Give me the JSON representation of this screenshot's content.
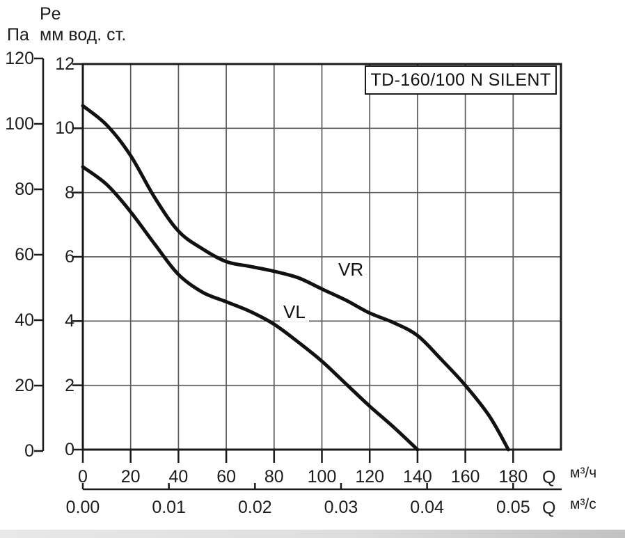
{
  "header": {
    "pe_label": "Pe",
    "pa_unit": "Па",
    "mm_unit": "мм вод. ст."
  },
  "title_box": {
    "label": "TD-160/100 N SILENT"
  },
  "curve_labels": {
    "vr": "VR",
    "vl": "VL"
  },
  "y_axis": {
    "pa_ticks": [
      0,
      20,
      40,
      60,
      80,
      100,
      120
    ],
    "mm_ticks": [
      0,
      2,
      4,
      6,
      8,
      10,
      12
    ]
  },
  "x_axis": {
    "hour": {
      "symbol": "Q",
      "unit": "м³/ч",
      "ticks": [
        0,
        20,
        40,
        60,
        80,
        100,
        120,
        140,
        160,
        180
      ]
    },
    "second": {
      "symbol": "Q",
      "unit": "м³/с",
      "ticks": [
        "0.00",
        "0.01",
        "0.02",
        "0.03",
        "0.04",
        "0.05"
      ]
    }
  },
  "colors": {
    "curve": "#111111",
    "grid": "#5a5a5a",
    "frame": "#1a1a1a",
    "text": "#1c1c1c",
    "background": "#ffffff"
  },
  "chart_data": {
    "type": "line",
    "title": "TD-160/100 N SILENT",
    "xlabel_primary": "Q м³/ч",
    "xlabel_secondary": "Q м³/с",
    "ylabel_primary": "Pe Па",
    "ylabel_secondary": "Pe мм вод. ст.",
    "x_ticks_m3h": [
      0,
      20,
      40,
      60,
      80,
      100,
      120,
      140,
      160,
      180
    ],
    "x_plot_range_m3h": [
      0,
      200
    ],
    "x_ticks_m3s": [
      0.0,
      0.01,
      0.02,
      0.03,
      0.04,
      0.05
    ],
    "y_range_mm_h2o": [
      0,
      12
    ],
    "y_range_pa": [
      0,
      120
    ],
    "grid": true,
    "legend_position": "inline-curve-labels",
    "series": [
      {
        "name": "VR",
        "units": [
          "м³/ч",
          "мм вод. ст."
        ],
        "points": [
          [
            0,
            10.7
          ],
          [
            10,
            10.1
          ],
          [
            20,
            9.15
          ],
          [
            30,
            7.85
          ],
          [
            40,
            6.8
          ],
          [
            50,
            6.25
          ],
          [
            60,
            5.85
          ],
          [
            70,
            5.7
          ],
          [
            80,
            5.55
          ],
          [
            90,
            5.35
          ],
          [
            100,
            5.0
          ],
          [
            110,
            4.65
          ],
          [
            120,
            4.25
          ],
          [
            130,
            3.95
          ],
          [
            140,
            3.55
          ],
          [
            150,
            2.8
          ],
          [
            160,
            2.0
          ],
          [
            170,
            1.05
          ],
          [
            178,
            0
          ]
        ]
      },
      {
        "name": "VL",
        "units": [
          "м³/ч",
          "мм вод. ст."
        ],
        "points": [
          [
            0,
            8.8
          ],
          [
            10,
            8.25
          ],
          [
            20,
            7.4
          ],
          [
            30,
            6.4
          ],
          [
            40,
            5.45
          ],
          [
            50,
            4.9
          ],
          [
            60,
            4.6
          ],
          [
            70,
            4.3
          ],
          [
            80,
            3.9
          ],
          [
            90,
            3.35
          ],
          [
            100,
            2.75
          ],
          [
            110,
            2.05
          ],
          [
            120,
            1.35
          ],
          [
            130,
            0.7
          ],
          [
            140,
            0
          ]
        ]
      }
    ]
  }
}
